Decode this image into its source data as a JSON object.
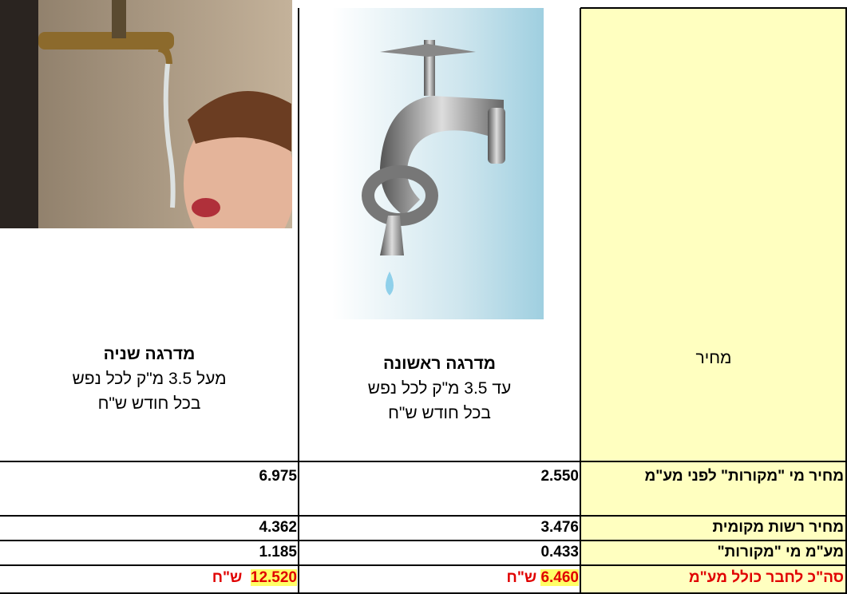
{
  "table": {
    "header": {
      "label": "מחיר",
      "tiers": [
        {
          "title": "מדרגה ראשונה",
          "lines": [
            "עד 3.5 מ\"ק לכל נפש",
            "בכל חודש ש\"ח"
          ]
        },
        {
          "title": "מדרגה שניה",
          "lines": [
            "מעל 3.5 מ\"ק לכל נפש",
            "בכל חודש ש\"ח"
          ]
        }
      ]
    },
    "rows": [
      [
        "מחיר מי \"מקורות\" לפני מע\"מ",
        "2.550",
        "6.975"
      ],
      [
        "מחיר רשות מקומית",
        "3.476",
        "4.362"
      ],
      [
        "מע\"מ מי \"מקורות\"",
        "0.433",
        "1.185"
      ]
    ],
    "total": {
      "label": "סה\"כ לחבר כולל מע\"מ",
      "unit": "ש\"ח",
      "values": [
        "6.460",
        "12.520"
      ]
    }
  }
}
